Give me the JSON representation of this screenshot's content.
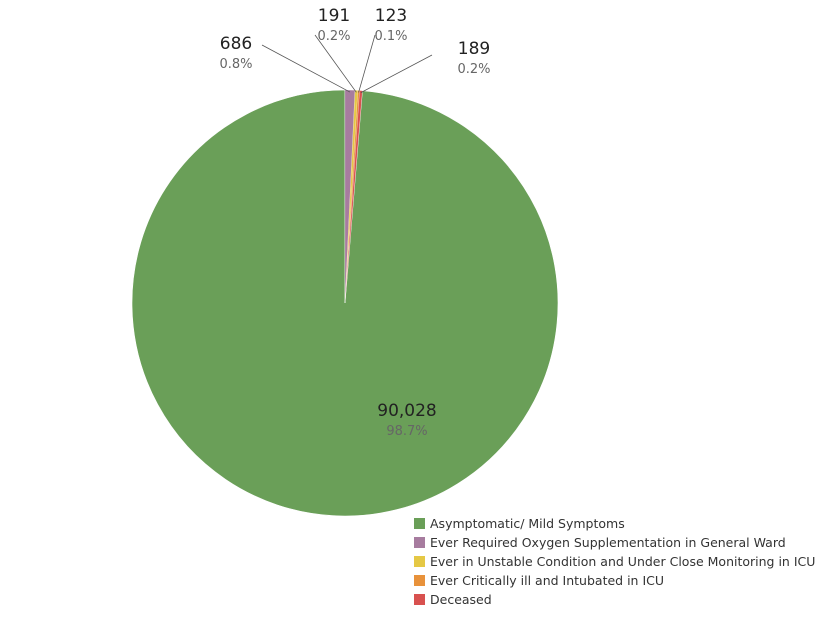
{
  "chart_data": {
    "type": "pie",
    "title": "",
    "slices": [
      {
        "name": "Asymptomatic/ Mild Symptoms",
        "value": 90028,
        "value_label": "90,028",
        "pct_label": "98.7%",
        "color": "#6a9f58"
      },
      {
        "name": "Ever Required Oxygen Supplementation in General Ward",
        "value": 686,
        "value_label": "686",
        "pct_label": "0.8%",
        "color": "#a77c9f"
      },
      {
        "name": "Ever in Unstable Condition and Under Close Monitoring in ICU",
        "value": 191,
        "value_label": "191",
        "pct_label": "0.2%",
        "color": "#e5c845"
      },
      {
        "name": "Ever Critically ill and Intubated in ICU",
        "value": 123,
        "value_label": "123",
        "pct_label": "0.1%",
        "color": "#e8923b"
      },
      {
        "name": "Deceased",
        "value": 189,
        "value_label": "189",
        "pct_label": "0.2%",
        "color": "#d8514f"
      }
    ],
    "legend_position": "bottom-right"
  }
}
